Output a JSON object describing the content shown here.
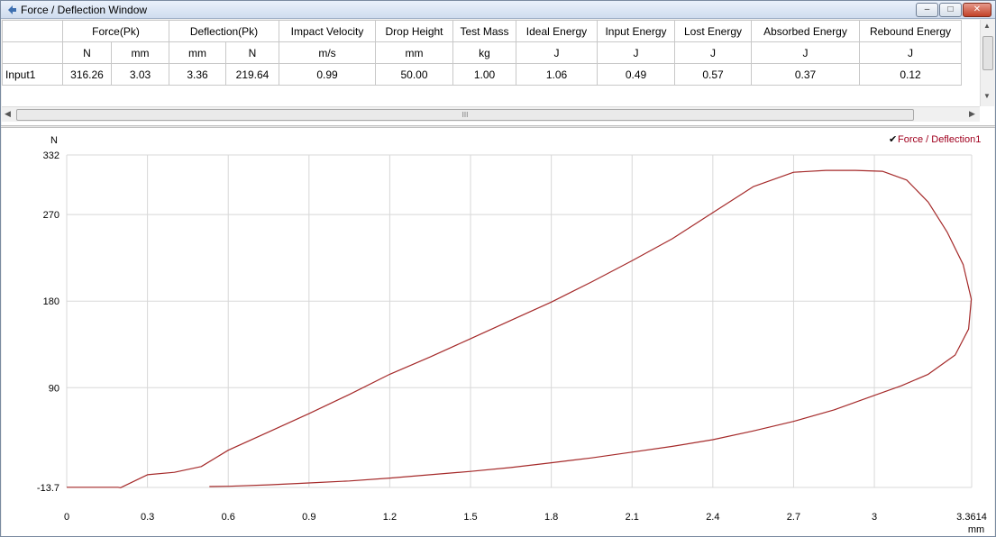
{
  "window": {
    "title": "Force / Deflection Window",
    "min_glyph": "–",
    "max_glyph": "□",
    "close_glyph": "✕"
  },
  "table": {
    "group_headers": [
      "",
      "Force(Pk)",
      "Deflection(Pk)",
      "Impact Velocity",
      "Drop Height",
      "Test Mass",
      "Ideal Energy",
      "Input Energy",
      "Lost Energy",
      "Absorbed Energy",
      "Rebound Energy"
    ],
    "units": [
      "",
      "N",
      "mm",
      "mm",
      "N",
      "m/s",
      "mm",
      "kg",
      "J",
      "J",
      "J",
      "J",
      "J"
    ],
    "rows": [
      {
        "label": "Input1",
        "values": [
          "316.26",
          "3.03",
          "3.36",
          "219.64",
          "0.99",
          "50.00",
          "1.00",
          "1.06",
          "0.49",
          "0.57",
          "0.37",
          "0.12"
        ]
      }
    ],
    "hscroll_grip": "III"
  },
  "legend": {
    "label": "Force / Deflection1",
    "checked_glyph": "✔"
  },
  "colors": {
    "curve": "#a52a2a",
    "grid": "#d8d8d8",
    "legend_text": "#a0001e"
  },
  "chart_data": {
    "type": "line",
    "ylabel": "N",
    "xlabel": "mm",
    "xlim": [
      0,
      3.3614
    ],
    "ylim": [
      -13.7,
      332
    ],
    "x_ticks": [
      0,
      0.3,
      0.6,
      0.9,
      1.2,
      1.5,
      1.8,
      2.1,
      2.4,
      2.7,
      3,
      3.3614
    ],
    "x_tick_labels": [
      "0",
      "0.3",
      "0.6",
      "0.9",
      "1.2",
      "1.5",
      "1.8",
      "2.1",
      "2.4",
      "2.7",
      "3",
      "3.3614"
    ],
    "y_ticks": [
      -13.7,
      90,
      180,
      270,
      332
    ],
    "y_tick_labels": [
      "-13.7",
      "90",
      "180",
      "270",
      "332"
    ],
    "grid": true,
    "legend_position": "top-right",
    "series": [
      {
        "name": "Force / Deflection1",
        "x": [
          0,
          0.19,
          0.2,
          0.3,
          0.4,
          0.5,
          0.6,
          0.75,
          0.9,
          1.05,
          1.2,
          1.35,
          1.5,
          1.65,
          1.8,
          1.95,
          2.1,
          2.25,
          2.4,
          2.55,
          2.7,
          2.82,
          2.93,
          3.03,
          3.12,
          3.2,
          3.27,
          3.33,
          3.36,
          3.35,
          3.3,
          3.2,
          3.1,
          3.0,
          2.85,
          2.7,
          2.55,
          2.4,
          2.25,
          2.1,
          1.95,
          1.8,
          1.65,
          1.5,
          1.35,
          1.2,
          1.05,
          0.9,
          0.75,
          0.6,
          0.53
        ],
        "y": [
          -13.5,
          -13.5,
          -14,
          -0.5,
          2,
          8,
          25,
          44,
          63,
          83,
          104,
          122,
          141,
          160,
          179,
          200,
          222,
          245,
          272,
          299,
          314,
          316,
          316,
          315,
          306,
          283,
          252,
          218,
          182,
          151,
          124,
          104,
          92,
          82,
          67,
          55,
          45,
          36,
          29,
          23,
          17,
          12,
          7,
          3,
          -0.5,
          -4,
          -7,
          -9,
          -11,
          -12.5,
          -12.8
        ]
      }
    ]
  }
}
